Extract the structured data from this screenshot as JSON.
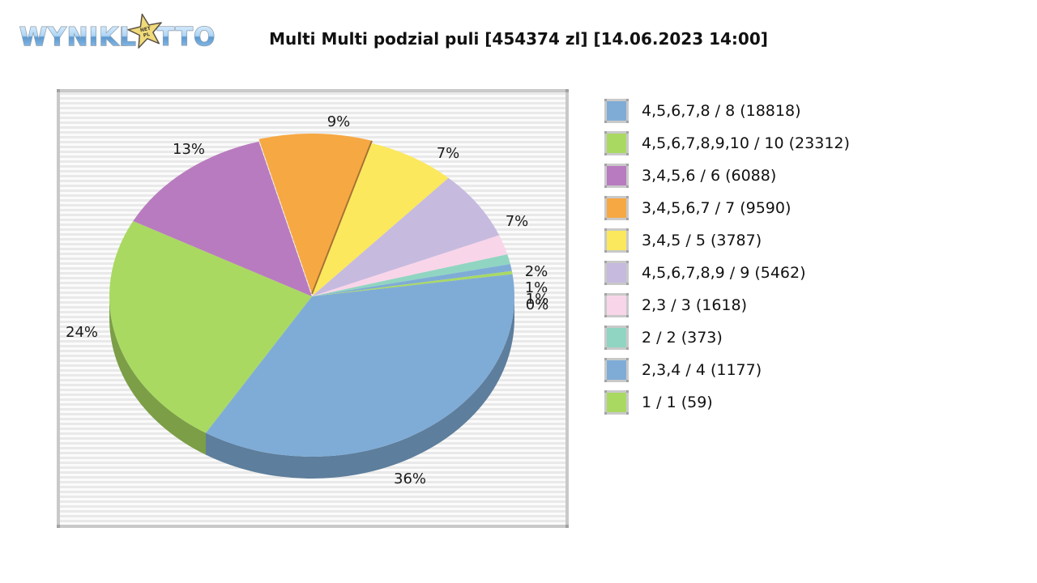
{
  "logo": {
    "word1": "WYNIKI",
    "word2_start": "L",
    "word2_end": "TTO",
    "star_line1": "NET",
    "star_line2": "PL",
    "colors": {
      "letter_top": "#e3f2fd",
      "letter_mid_light": "#aed5f5",
      "letter_mid_dark": "#5b9ad2",
      "letter_bottom": "#9cc8ee",
      "letter_outline": "#8a9bac",
      "star_fill": "#f0db7a",
      "star_outline": "#5a5146"
    }
  },
  "chart_data": {
    "type": "pie",
    "title": "Multi Multi podzial puli [454374 zl] [14.06.2023 14:00]",
    "unit": "%",
    "legend_position": "right",
    "pool_total_label": "454374 zl",
    "draw_datetime_label": "14.06.2023 14:00",
    "slices": [
      {
        "label": "4,5,6,7,8 / 8",
        "value": 18818,
        "percent": 36,
        "percent_exact": 36.0,
        "color": "#7FACD6"
      },
      {
        "label": "4,5,6,7,8,9,10 / 10",
        "value": 23312,
        "percent": 24,
        "percent_exact": 24.0,
        "color": "#A9D961"
      },
      {
        "label": "3,4,5,6 / 6",
        "value": 6088,
        "percent": 13,
        "percent_exact": 13.0,
        "color": "#B97BBF"
      },
      {
        "label": "3,4,5,6,7 / 7",
        "value": 9590,
        "percent": 9,
        "percent_exact": 9.0,
        "color": "#F6A843"
      },
      {
        "label": "3,4,5 / 5",
        "value": 3787,
        "percent": 7,
        "percent_exact": 7.0,
        "color": "#FBE85C"
      },
      {
        "label": "4,5,6,7,8,9 / 9",
        "value": 5462,
        "percent": 7,
        "percent_exact": 7.0,
        "color": "#C6BADF"
      },
      {
        "label": "2,3 / 3",
        "value": 1618,
        "percent": 2,
        "percent_exact": 2.0,
        "color": "#F9D5E9"
      },
      {
        "label": "2 / 2",
        "value": 373,
        "percent": 1,
        "percent_exact": 1.0,
        "color": "#90D5C1"
      },
      {
        "label": "2,3,4 / 4",
        "value": 1177,
        "percent": 1,
        "percent_exact": 0.7,
        "color": "#7FACD6"
      },
      {
        "label": "1 / 1",
        "value": 59,
        "percent": 0,
        "percent_exact": 0.3,
        "color": "#A9D961"
      }
    ]
  }
}
